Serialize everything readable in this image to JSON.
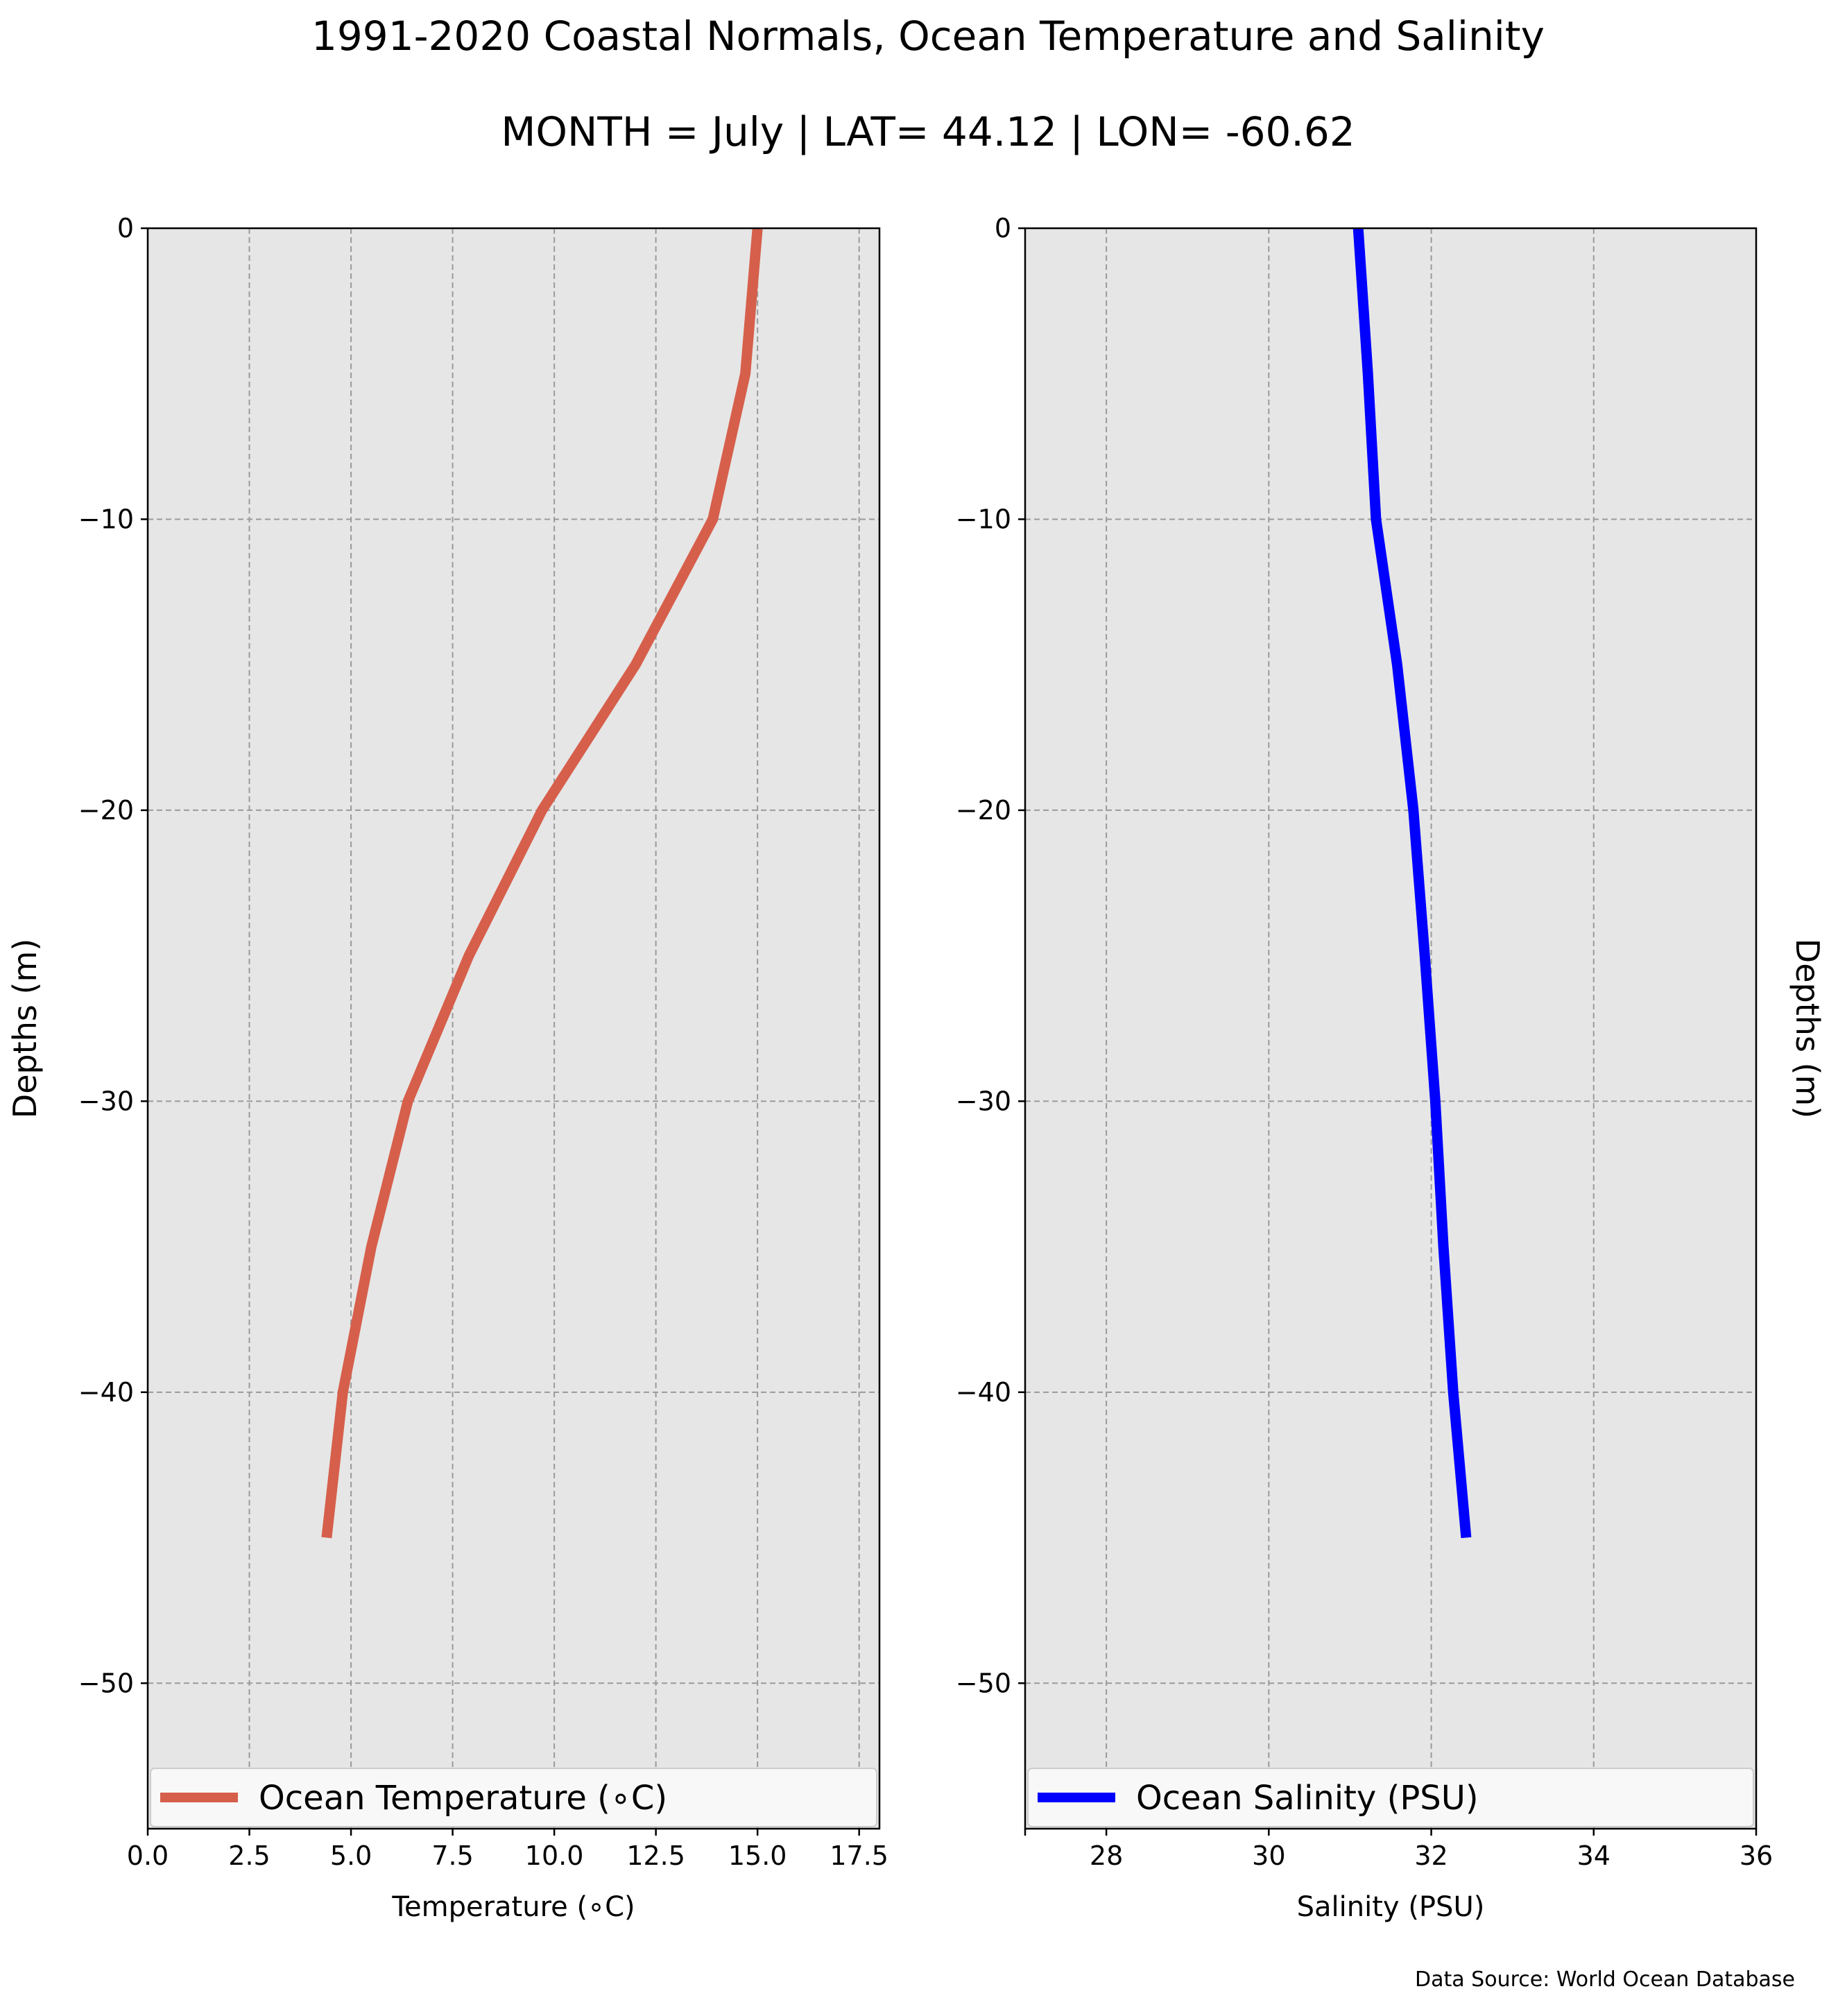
{
  "figure": {
    "title": "1991-2020 Coastal Normals, Ocean Temperature and Salinity",
    "subtitle": "MONTH = July | LAT= 44.12 | LON= -60.62",
    "source": "Data Source: World Ocean Database",
    "background": "#ffffff",
    "plot_background": "#e6e6e6"
  },
  "chart_data": [
    {
      "type": "line",
      "xlabel": "Temperature (∘C)",
      "ylabel": "Depths (m)",
      "xlim": [
        0,
        18
      ],
      "ylim": [
        -55,
        0
      ],
      "xticks": [
        0.0,
        2.5,
        5.0,
        7.5,
        10.0,
        12.5,
        15.0,
        17.5
      ],
      "xtick_labels": [
        "0.0",
        "2.5",
        "5.0",
        "7.5",
        "10.0",
        "12.5",
        "15.0",
        "17.5"
      ],
      "yticks": [
        0,
        -10,
        -20,
        -30,
        -40,
        -50
      ],
      "ytick_labels": [
        "0",
        "−10",
        "−20",
        "−30",
        "−40",
        "−50"
      ],
      "grid": true,
      "legend_position": "lower center",
      "series": [
        {
          "name": "Ocean Temperature (∘C)",
          "color": "#d65f4b",
          "x": [
            15.0,
            14.7,
            13.9,
            12.0,
            9.7,
            7.9,
            6.4,
            5.5,
            4.8,
            4.4
          ],
          "y": [
            0,
            -5,
            -10,
            -15,
            -20,
            -25,
            -30,
            -35,
            -40,
            -45
          ]
        }
      ]
    },
    {
      "type": "line",
      "xlabel": "Salinity (PSU)",
      "ylabel": "Depths (m)",
      "xlim": [
        27,
        36
      ],
      "ylim": [
        -55,
        0
      ],
      "xticks": [
        28,
        30,
        32,
        34,
        36
      ],
      "xtick_labels": [
        "28",
        "30",
        "32",
        "34",
        "36"
      ],
      "yticks": [
        0,
        -10,
        -20,
        -30,
        -40,
        -50
      ],
      "ytick_labels": [
        "0",
        "−10",
        "−20",
        "−30",
        "−40",
        "−50"
      ],
      "grid": true,
      "legend_position": "lower center",
      "series": [
        {
          "name": "Ocean Salinity (PSU)",
          "color": "#0000ff",
          "x": [
            31.1,
            31.22,
            31.32,
            31.58,
            31.78,
            31.92,
            32.05,
            32.15,
            32.27,
            32.43
          ],
          "y": [
            0,
            -5,
            -10,
            -15,
            -20,
            -25,
            -30,
            -35,
            -40,
            -45
          ]
        }
      ]
    }
  ]
}
